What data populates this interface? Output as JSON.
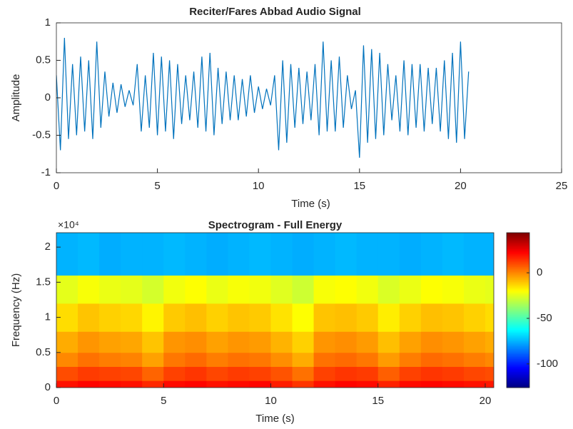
{
  "chart_data": [
    {
      "type": "line",
      "title": "Reciter/Fares Abbad Audio Signal",
      "xlabel": "Time (s)",
      "ylabel": "Amplitude",
      "color": "#0072bd",
      "xlim": [
        0,
        25
      ],
      "ylim": [
        -1,
        1
      ],
      "xticks": [
        0,
        5,
        10,
        15,
        20,
        25
      ],
      "yticks": [
        -1,
        -0.5,
        0,
        0.5,
        1
      ],
      "x": [
        0,
        0.2,
        0.4,
        0.6,
        0.8,
        1,
        1.2,
        1.4,
        1.6,
        1.8,
        2,
        2.2,
        2.4,
        2.6,
        2.8,
        3,
        3.2,
        3.4,
        3.6,
        3.8,
        4,
        4.2,
        4.4,
        4.6,
        4.8,
        5,
        5.2,
        5.4,
        5.6,
        5.8,
        6,
        6.2,
        6.4,
        6.6,
        6.8,
        7,
        7.2,
        7.4,
        7.6,
        7.8,
        8,
        8.2,
        8.4,
        8.6,
        8.8,
        9,
        9.2,
        9.4,
        9.6,
        9.8,
        10,
        10.2,
        10.4,
        10.6,
        10.8,
        11,
        11.2,
        11.4,
        11.6,
        11.8,
        12,
        12.2,
        12.4,
        12.6,
        12.8,
        13,
        13.2,
        13.4,
        13.6,
        13.8,
        14,
        14.2,
        14.4,
        14.6,
        14.8,
        15,
        15.2,
        15.4,
        15.6,
        15.8,
        16,
        16.2,
        16.4,
        16.6,
        16.8,
        17,
        17.2,
        17.4,
        17.6,
        17.8,
        18,
        18.2,
        18.4,
        18.6,
        18.8,
        19,
        19.2,
        19.4,
        19.6,
        19.8,
        20,
        20.2,
        20.4
      ],
      "values": [
        0.3,
        -0.7,
        0.8,
        -0.55,
        0.45,
        -0.5,
        0.55,
        -0.45,
        0.5,
        -0.55,
        0.75,
        -0.4,
        0.35,
        -0.25,
        0.2,
        -0.2,
        0.18,
        -0.12,
        0.1,
        -0.1,
        0.45,
        -0.45,
        0.3,
        -0.4,
        0.6,
        -0.5,
        0.55,
        -0.45,
        0.5,
        -0.55,
        0.45,
        -0.35,
        0.3,
        -0.3,
        0.35,
        -0.4,
        0.55,
        -0.45,
        0.6,
        -0.5,
        0.4,
        -0.35,
        0.35,
        -0.3,
        0.3,
        -0.3,
        0.25,
        -0.25,
        0.3,
        -0.2,
        0.15,
        -0.15,
        0.12,
        -0.1,
        0.3,
        -0.7,
        0.5,
        -0.6,
        0.45,
        -0.4,
        0.4,
        -0.35,
        0.35,
        -0.3,
        0.45,
        -0.5,
        0.75,
        -0.45,
        0.5,
        -0.45,
        0.55,
        -0.4,
        0.3,
        -0.15,
        0.1,
        -0.8,
        0.7,
        -0.6,
        0.65,
        -0.55,
        0.6,
        -0.5,
        0.45,
        -0.3,
        0.3,
        -0.45,
        0.5,
        -0.5,
        0.45,
        -0.4,
        0.45,
        -0.45,
        0.4,
        -0.35,
        0.4,
        -0.45,
        0.5,
        -0.55,
        0.6,
        -0.6,
        0.75,
        -0.55,
        0.35
      ]
    },
    {
      "type": "heatmap",
      "title": "Spectrogram - Full Energy",
      "xlabel": "Time (s)",
      "ylabel": "Frequency (Hz)",
      "y_exponent": "×10⁴",
      "xlim": [
        0,
        20.4
      ],
      "ylim": [
        0,
        22050
      ],
      "xticks": [
        0,
        5,
        10,
        15,
        20
      ],
      "yticks": [
        {
          "value": 0,
          "label": "0"
        },
        {
          "value": 5000,
          "label": "0.5"
        },
        {
          "value": 10000,
          "label": "1"
        },
        {
          "value": 15000,
          "label": "1.5"
        },
        {
          "value": 20000,
          "label": "2"
        }
      ],
      "colormap": "jet",
      "clim": [
        -126,
        44
      ],
      "cticks": [
        -100,
        -50,
        0
      ],
      "xbins": [
        0,
        1,
        2,
        3,
        4,
        5,
        6,
        7,
        8,
        9,
        10,
        11,
        12,
        13,
        14,
        15,
        16,
        17,
        18,
        19,
        20,
        20.4
      ],
      "ybins": [
        0,
        1000,
        3000,
        5000,
        8000,
        12000,
        16000,
        22050
      ],
      "values": [
        [
          20,
          22,
          21,
          20,
          16,
          21,
          22,
          20,
          21,
          22,
          18,
          14,
          20,
          22,
          21,
          17,
          21,
          22,
          21,
          20,
          19
        ],
        [
          10,
          13,
          12,
          11,
          6,
          12,
          14,
          11,
          13,
          12,
          9,
          4,
          12,
          14,
          13,
          7,
          12,
          14,
          13,
          11,
          10
        ],
        [
          0,
          4,
          2,
          1,
          -4,
          3,
          5,
          2,
          4,
          3,
          -1,
          -6,
          4,
          5,
          3,
          -3,
          2,
          5,
          4,
          2,
          0
        ],
        [
          -6,
          -2,
          -4,
          -5,
          -10,
          -2,
          -1,
          -4,
          -2,
          -3,
          -7,
          -12,
          -2,
          -1,
          -3,
          -9,
          -4,
          -1,
          -2,
          -4,
          -6
        ],
        [
          -14,
          -10,
          -12,
          -13,
          -18,
          -11,
          -9,
          -12,
          -10,
          -11,
          -15,
          -20,
          -10,
          -9,
          -11,
          -17,
          -12,
          -9,
          -10,
          -12,
          -14
        ],
        [
          -24,
          -21,
          -23,
          -24,
          -27,
          -22,
          -20,
          -23,
          -21,
          -22,
          -25,
          -28,
          -21,
          -20,
          -22,
          -26,
          -23,
          -20,
          -21,
          -23,
          -24
        ],
        [
          -75,
          -74,
          -76,
          -75,
          -75,
          -74,
          -75,
          -76,
          -75,
          -74,
          -75,
          -76,
          -75,
          -74,
          -75,
          -75,
          -76,
          -75,
          -74,
          -75,
          -75
        ]
      ]
    }
  ]
}
